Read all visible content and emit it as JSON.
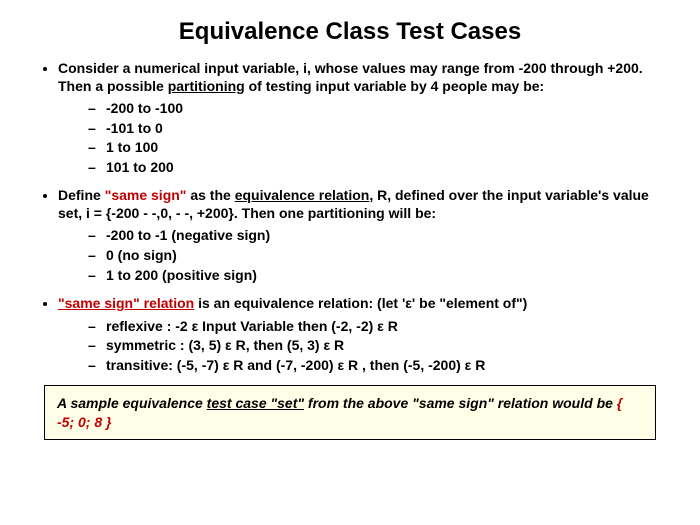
{
  "title": "Equivalence Class Test Cases",
  "b1": {
    "pre": "Consider a numerical input variable, i, whose values may range from -200 through +200. Then a possible ",
    "partitioning": "partitioning",
    "post": "  of testing input variable by 4 people may be:",
    "s1": "  -200 to -100",
    "s2": "   -101 to 0",
    "s3": "   1  to 100",
    "s4": "  101 to 200"
  },
  "b2": {
    "pre": "Define ",
    "samesign": "\"same sign\"",
    "mid": " as the ",
    "equiv": "equivalence relation",
    "post": ", R, defined over the input variable's value set, i = {-200 - -,0, - -, +200}. Then one partitioning will be:",
    "s1": "   -200 to -1 (negative sign)",
    "s2": "   0             (no sign)",
    "s3": "   1 to 200   (positive sign)"
  },
  "b3": {
    "samesign": "\"same sign\" relation",
    "post": " is an equivalence relation:  (let 'ε' be \"element of\")",
    "s1": "   reflexive :           -2 ε Input Variable  then  (-2, -2)  ε R",
    "s2": "   symmetric :    (3, 5) ε R, then (5, 3)  ε R",
    "s3": "   transitive:       (-5, -7)  ε R and (-7, -200) ε R , then (-5, -200) ε R"
  },
  "callout": {
    "p1": "A sample equivalence ",
    "tc": "test case \"set\"",
    "p2": " from the above \"same sign\" relation would be  ",
    "set": "{ -5; 0; 8 }"
  }
}
